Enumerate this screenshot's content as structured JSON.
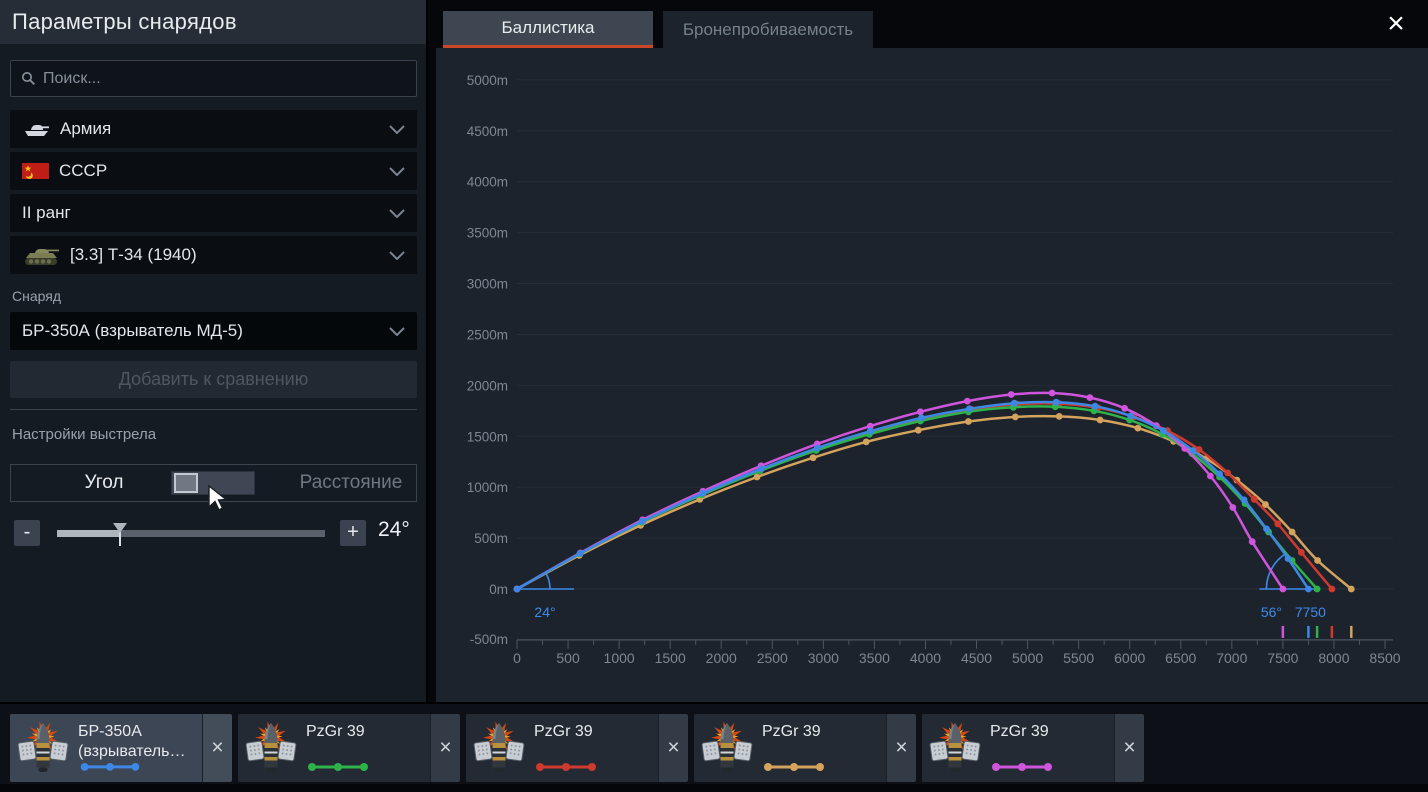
{
  "header": {
    "title": "Параметры снарядов",
    "close_glyph": "×"
  },
  "sidebar": {
    "search_placeholder": "Поиск...",
    "filters": [
      {
        "label": "Армия",
        "icon": "tank-icon"
      },
      {
        "label": "СССР",
        "icon": "ussr-flag-icon"
      },
      {
        "label": "II ранг",
        "icon": null
      },
      {
        "label": "[3.3] Т-34 (1940)",
        "icon": "vehicle-icon"
      }
    ],
    "shell_section": {
      "label": "Снаряд",
      "selected": "БР-350А (взрыватель МД-5)"
    },
    "add_button_label": "Добавить к сравнению",
    "shot_settings": {
      "title": "Настройки выстрела",
      "mode_left": "Угол",
      "mode_right": "Расстояние",
      "selected_mode": "Угол",
      "slider_minus": "-",
      "slider_plus": "+",
      "angle_value": "24°"
    }
  },
  "tabs": [
    {
      "label": "Баллистика",
      "active": true
    },
    {
      "label": "Бронепробиваемость",
      "active": false
    }
  ],
  "chart_data": {
    "type": "line",
    "title": "",
    "xlabel": "",
    "ylabel": "",
    "x_unit": "m",
    "y_unit": "m",
    "xlim": [
      0,
      8500
    ],
    "ylim": [
      -500,
      5000
    ],
    "x_tick_step": 500,
    "x_minor_tick_step": 250,
    "y_tick_step": 500,
    "y_tick_suffix": "m",
    "grid": "horizontal",
    "annotation_color": "#3f8ae8",
    "launch_angle_deg": 24,
    "launch_label": "24°",
    "impact_angle_deg": 56,
    "impact_angle_label": "56°",
    "impact_range_label": "7750",
    "series": [
      {
        "name": "БР-350А (взрыватель МД-5)",
        "color": "#3d87e6",
        "range_m": 7750,
        "z": 5,
        "points": [
          [
            0,
            0
          ],
          [
            620,
            350
          ],
          [
            1230,
            665
          ],
          [
            1820,
            940
          ],
          [
            2390,
            1180
          ],
          [
            2940,
            1385
          ],
          [
            3460,
            1550
          ],
          [
            3960,
            1680
          ],
          [
            4430,
            1770
          ],
          [
            4870,
            1825
          ],
          [
            5280,
            1835
          ],
          [
            5660,
            1795
          ],
          [
            6010,
            1700
          ],
          [
            6330,
            1555
          ],
          [
            6620,
            1360
          ],
          [
            6880,
            1130
          ],
          [
            7120,
            875
          ],
          [
            7340,
            590
          ],
          [
            7550,
            300
          ],
          [
            7750,
            0
          ]
        ]
      },
      {
        "name": "PzGr 39",
        "color": "#2eb34b",
        "range_m": 7835,
        "z": 3,
        "points": [
          [
            0,
            0
          ],
          [
            615,
            345
          ],
          [
            1220,
            655
          ],
          [
            1810,
            925
          ],
          [
            2380,
            1160
          ],
          [
            2930,
            1360
          ],
          [
            3450,
            1520
          ],
          [
            3950,
            1650
          ],
          [
            4420,
            1740
          ],
          [
            4860,
            1785
          ],
          [
            5270,
            1790
          ],
          [
            5650,
            1750
          ],
          [
            6000,
            1660
          ],
          [
            6320,
            1520
          ],
          [
            6610,
            1330
          ],
          [
            6880,
            1100
          ],
          [
            7130,
            840
          ],
          [
            7360,
            560
          ],
          [
            7590,
            280
          ],
          [
            7835,
            0
          ]
        ]
      },
      {
        "name": "PzGr 39",
        "color": "#cf3a2e",
        "range_m": 7980,
        "z": 2,
        "points": [
          [
            0,
            0
          ],
          [
            620,
            350
          ],
          [
            1230,
            665
          ],
          [
            1820,
            935
          ],
          [
            2390,
            1175
          ],
          [
            2940,
            1380
          ],
          [
            3470,
            1545
          ],
          [
            3970,
            1675
          ],
          [
            4450,
            1765
          ],
          [
            4900,
            1815
          ],
          [
            5310,
            1820
          ],
          [
            5690,
            1780
          ],
          [
            6040,
            1690
          ],
          [
            6370,
            1555
          ],
          [
            6680,
            1370
          ],
          [
            6960,
            1140
          ],
          [
            7220,
            880
          ],
          [
            7450,
            640
          ],
          [
            7680,
            360
          ],
          [
            7980,
            0
          ]
        ]
      },
      {
        "name": "PzGr 39",
        "color": "#d4a35e",
        "range_m": 8170,
        "z": 1,
        "points": [
          [
            0,
            0
          ],
          [
            610,
            330
          ],
          [
            1210,
            625
          ],
          [
            1790,
            880
          ],
          [
            2350,
            1100
          ],
          [
            2900,
            1290
          ],
          [
            3420,
            1445
          ],
          [
            3930,
            1560
          ],
          [
            4420,
            1645
          ],
          [
            4880,
            1690
          ],
          [
            5310,
            1695
          ],
          [
            5710,
            1660
          ],
          [
            6080,
            1580
          ],
          [
            6430,
            1450
          ],
          [
            6750,
            1280
          ],
          [
            7050,
            1070
          ],
          [
            7330,
            830
          ],
          [
            7590,
            560
          ],
          [
            7840,
            280
          ],
          [
            8170,
            0
          ]
        ]
      },
      {
        "name": "PzGr 39",
        "color": "#cf55dd",
        "range_m": 7500,
        "z": 4,
        "points": [
          [
            0,
            0
          ],
          [
            620,
            355
          ],
          [
            1230,
            680
          ],
          [
            1820,
            960
          ],
          [
            2390,
            1210
          ],
          [
            2940,
            1425
          ],
          [
            3460,
            1600
          ],
          [
            3950,
            1740
          ],
          [
            4410,
            1845
          ],
          [
            4840,
            1910
          ],
          [
            5240,
            1925
          ],
          [
            5610,
            1880
          ],
          [
            5950,
            1775
          ],
          [
            6260,
            1605
          ],
          [
            6540,
            1380
          ],
          [
            6790,
            1110
          ],
          [
            7010,
            800
          ],
          [
            7200,
            465
          ],
          [
            7500,
            0
          ]
        ]
      }
    ],
    "landing_markers": [
      {
        "x": 7500,
        "color": "#cf55dd"
      },
      {
        "x": 7750,
        "color": "#3d87e6"
      },
      {
        "x": 7835,
        "color": "#2eb34b"
      },
      {
        "x": 7980,
        "color": "#cf3a2e"
      },
      {
        "x": 8170,
        "color": "#d4a35e"
      }
    ]
  },
  "comparison_cards": [
    {
      "name": "БР-350А (взрыватель МД-5)",
      "color": "#3d87e6",
      "selected": true,
      "close_glyph": "×"
    },
    {
      "name": "PzGr 39",
      "color": "#2eb34b",
      "selected": false,
      "close_glyph": "×"
    },
    {
      "name": "PzGr 39",
      "color": "#cf3a2e",
      "selected": false,
      "close_glyph": "×"
    },
    {
      "name": "PzGr 39",
      "color": "#d4a35e",
      "selected": false,
      "close_glyph": "×"
    },
    {
      "name": "PzGr 39",
      "color": "#cf55dd",
      "selected": false,
      "close_glyph": "×"
    }
  ]
}
